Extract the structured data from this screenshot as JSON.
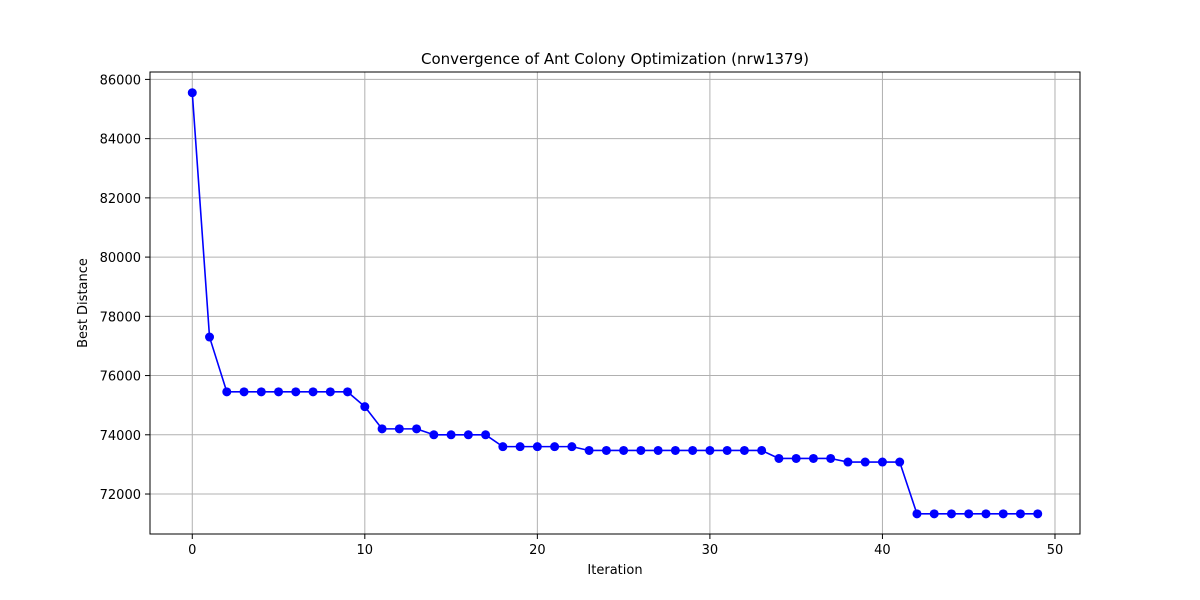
{
  "chart_data": {
    "type": "line",
    "title": "Convergence of Ant Colony Optimization (nrw1379)",
    "xlabel": "Iteration",
    "ylabel": "Best Distance",
    "xlim": [
      -2.45,
      51.45
    ],
    "ylim": [
      70650,
      86250
    ],
    "xticks": [
      0,
      10,
      20,
      30,
      40,
      50
    ],
    "yticks": [
      72000,
      74000,
      76000,
      78000,
      80000,
      82000,
      84000,
      86000
    ],
    "grid": true,
    "line_color": "#0000ff",
    "marker": "circle",
    "series": [
      {
        "x": [
          0,
          1,
          2,
          3,
          4,
          5,
          6,
          7,
          8,
          9,
          10,
          11,
          12,
          13,
          14,
          15,
          16,
          17,
          18,
          19,
          20,
          21,
          22,
          23,
          24,
          25,
          26,
          27,
          28,
          29,
          30,
          31,
          32,
          33,
          34,
          35,
          36,
          37,
          38,
          39,
          40,
          41,
          42,
          43,
          44,
          45,
          46,
          47,
          48,
          49
        ],
        "values": [
          85550,
          77300,
          75450,
          75450,
          75450,
          75450,
          75450,
          75450,
          75450,
          75450,
          74950,
          74200,
          74200,
          74200,
          74000,
          74000,
          74000,
          74000,
          73600,
          73600,
          73600,
          73600,
          73600,
          73470,
          73470,
          73470,
          73470,
          73470,
          73470,
          73470,
          73470,
          73470,
          73470,
          73470,
          73200,
          73200,
          73200,
          73200,
          73080,
          73080,
          73080,
          73080,
          71330,
          71330,
          71330,
          71330,
          71330,
          71330,
          71330,
          71330
        ]
      }
    ]
  }
}
